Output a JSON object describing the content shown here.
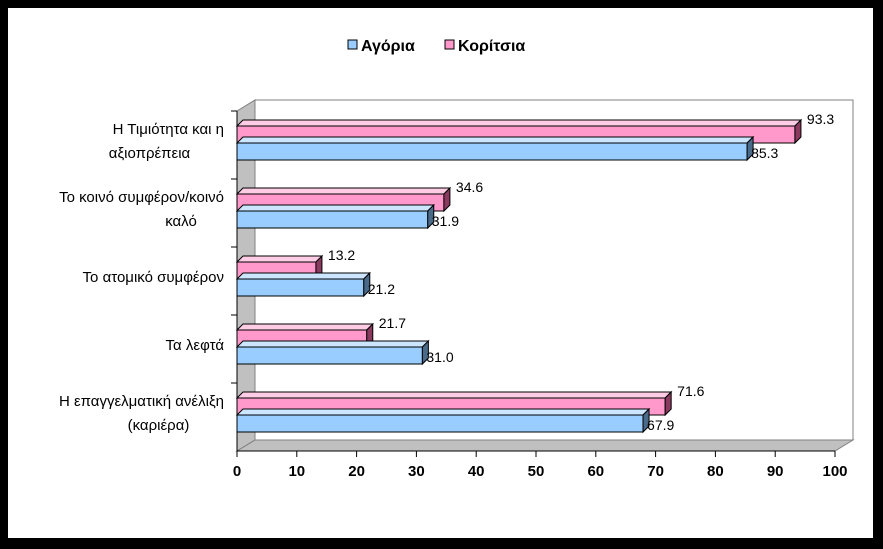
{
  "chart_data": {
    "type": "bar",
    "orientation": "horizontal",
    "categories": [
      [
        "Η Τιμιότητα και η",
        "αξιοπρέπεια"
      ],
      [
        "Το κοινό συμφέρον/κοινό",
        "καλό"
      ],
      [
        "Το ατομικό συμφέρον"
      ],
      [
        "Τα λεφτά"
      ],
      [
        "Η επαγγελματική ανέλιξη",
        "(καριέρα)"
      ]
    ],
    "series": [
      {
        "name": "Αγόρια",
        "values": [
          85.3,
          31.9,
          21.2,
          31.0,
          67.9
        ],
        "color": "#99CCFF"
      },
      {
        "name": "Κορίτσια",
        "values": [
          93.3,
          34.6,
          13.2,
          21.7,
          71.6
        ],
        "color": "#FF99CC"
      }
    ],
    "value_labels": [
      [
        "85.3",
        "31.9",
        "21.2",
        "31.0",
        "67.9"
      ],
      [
        "93.3",
        "34.6",
        "13.2",
        "21.7",
        "71.6"
      ]
    ],
    "xlim": [
      0,
      100
    ],
    "ticks": [
      "0",
      "10",
      "20",
      "30",
      "40",
      "50",
      "60",
      "70",
      "80",
      "90",
      "100"
    ],
    "legend_position": "top-center",
    "grid": false,
    "style": "3d"
  }
}
